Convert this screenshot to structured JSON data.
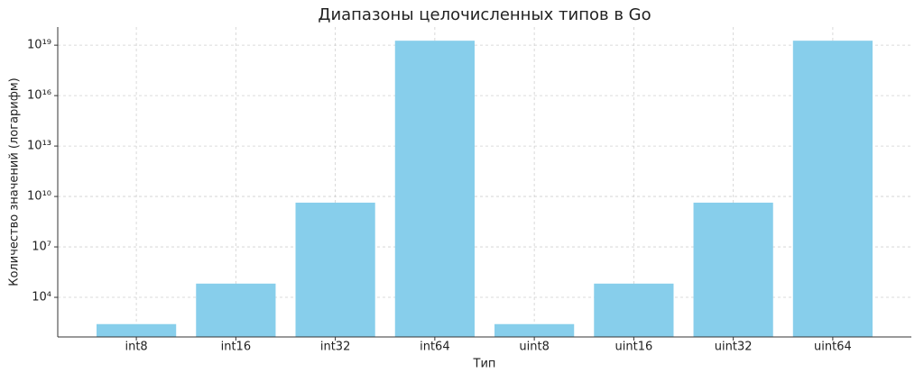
{
  "chart_data": {
    "type": "bar",
    "title": "Диапазоны целочисленных типов в Go",
    "x_label": "Тип",
    "y_label": "Количество значений (логарифм)",
    "categories": [
      "int8",
      "int16",
      "int32",
      "int64",
      "uint8",
      "uint16",
      "uint32",
      "uint64"
    ],
    "values": [
      256,
      65536,
      4294967296,
      18446744073709551616,
      256,
      65536,
      4294967296,
      18446744073709551616
    ],
    "color": "#87ceeb",
    "y_log_scale": true,
    "ylim": [
      44,
      1.2e+20
    ],
    "yticks": [
      {
        "value": 10000,
        "label": "10⁴"
      },
      {
        "value": 10000000,
        "label": "10⁷"
      },
      {
        "value": 10000000000,
        "label": "10¹⁰"
      },
      {
        "value": 10000000000000,
        "label": "10¹³"
      },
      {
        "value": 10000000000000000,
        "label": "10¹⁶"
      },
      {
        "value": 10000000000000000000,
        "label": "10¹⁹"
      }
    ],
    "grid": true
  }
}
